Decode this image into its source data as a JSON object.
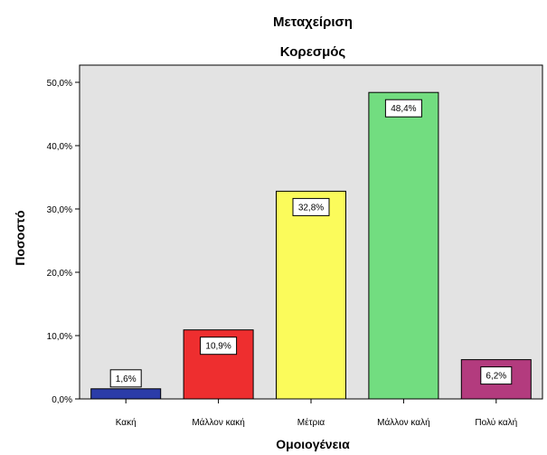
{
  "chart_data": {
    "type": "bar",
    "title": "Μεταχείριση",
    "subtitle": "Κορεσμός",
    "xlabel": "Ομοιογένεια",
    "ylabel": "Ποσοστό",
    "categories": [
      "Κακή",
      "Μάλλον κακή",
      "Μέτρια",
      "Μάλλον καλή",
      "Πολύ καλή"
    ],
    "values": [
      1.6,
      10.9,
      32.8,
      48.4,
      6.2
    ],
    "value_labels": [
      "1,6%",
      "10,9%",
      "32,8%",
      "48,4%",
      "6,2%"
    ],
    "colors": [
      "#2b3ca8",
      "#ee2e2f",
      "#fbfb5b",
      "#72dd80",
      "#b33b7e"
    ],
    "ylim": [
      0,
      50
    ],
    "yticks": [
      0,
      10,
      20,
      30,
      40,
      50
    ],
    "ytick_labels": [
      "0,0%",
      "10,0%",
      "20,0%",
      "30,0%",
      "40,0%",
      "50,0%"
    ],
    "plot_background": "#e3e3e3",
    "grid": false,
    "legend": "none"
  }
}
